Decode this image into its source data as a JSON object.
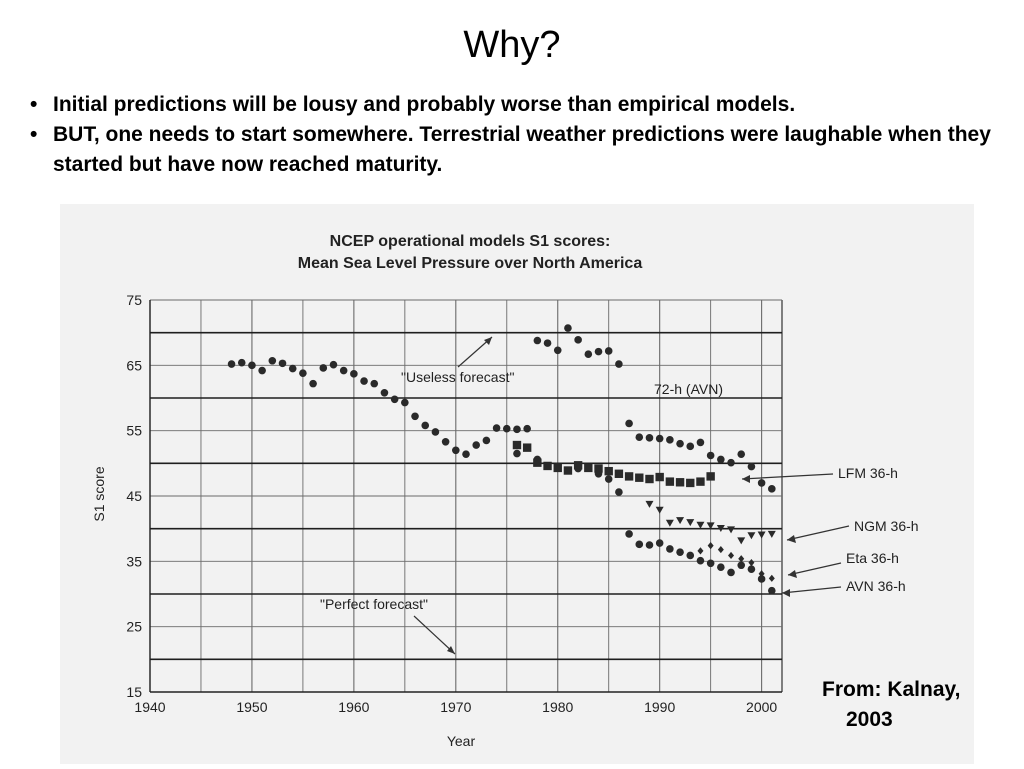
{
  "slide": {
    "title": "Why?",
    "bullets": [
      "Initial predictions will be lousy and probably worse than empirical models.",
      "BUT, one needs to start somewhere.  Terrestrial weather predictions were laughable when they started but have now reached maturity."
    ],
    "bullet_glyph": "•",
    "citation_line1": "From: Kalnay,",
    "citation_line2": "2003"
  },
  "chart_data": {
    "type": "scatter",
    "title": "NCEP operational models S1 scores:",
    "subtitle": "Mean Sea Level Pressure over North America",
    "xlabel": "Year",
    "ylabel": "S1 score",
    "xlim": [
      1940,
      2002
    ],
    "ylim": [
      15,
      75
    ],
    "x_ticks": [
      1940,
      1950,
      1960,
      1970,
      1980,
      1990,
      2000
    ],
    "y_ticks": [
      15,
      25,
      35,
      45,
      55,
      65,
      75
    ],
    "grid": true,
    "annotations": [
      "\"Useless forecast\"",
      "\"Perfect forecast\"",
      "72-h (AVN)",
      "LFM 36-h",
      "NGM 36-h",
      "Eta 36-h",
      "AVN 36-h"
    ],
    "reference_lines": [
      70,
      60,
      50,
      40,
      30,
      20
    ],
    "series": [
      {
        "marker": "circle",
        "x": [
          1948,
          1949,
          1950,
          1951,
          1952,
          1953,
          1954,
          1955,
          1956,
          1957,
          1958,
          1959,
          1960,
          1961,
          1962,
          1963,
          1964,
          1965,
          1966,
          1967,
          1968,
          1969,
          1970,
          1971,
          1972,
          1973,
          1974,
          1975,
          1976
        ],
        "y": [
          65.2,
          65.4,
          65.0,
          64.2,
          65.7,
          65.3,
          64.5,
          63.8,
          62.2,
          64.6,
          65.1,
          64.2,
          63.7,
          62.6,
          62.2,
          60.8,
          59.8,
          59.3,
          57.2,
          55.8,
          54.8,
          53.3,
          52.0,
          51.4,
          52.8,
          53.5,
          55.4,
          55.3,
          55.2
        ]
      },
      {
        "marker": "circle",
        "x": [
          1977,
          1978,
          1979,
          1980,
          1981,
          1982,
          1983,
          1984,
          1985,
          1986,
          1987,
          1988,
          1989,
          1990,
          1991,
          1992,
          1993,
          1994,
          1995,
          1996,
          1997,
          1998,
          1999,
          2000,
          2001
        ],
        "y": [
          55.3,
          68.8,
          68.4,
          67.3,
          70.7,
          68.9,
          66.7,
          67.1,
          67.2,
          65.2,
          56.1,
          54.0,
          53.9,
          53.8,
          53.6,
          53.0,
          52.6,
          53.2,
          51.2,
          50.6,
          50.1,
          51.4,
          49.5,
          47.0,
          46.1
        ]
      },
      {
        "marker": "square",
        "x": [
          1976,
          1977,
          1978,
          1979,
          1980,
          1981,
          1982,
          1983,
          1984,
          1985,
          1986,
          1987,
          1988,
          1989,
          1990,
          1991,
          1992,
          1993,
          1994,
          1995
        ],
        "y": [
          52.8,
          52.4,
          50.1,
          49.6,
          49.3,
          48.9,
          49.7,
          49.3,
          49.2,
          48.8,
          48.4,
          48.0,
          47.8,
          47.6,
          47.9,
          47.2,
          47.1,
          47.0,
          47.2,
          48.0
        ]
      },
      {
        "marker": "triangle",
        "x": [
          1989,
          1990,
          1991,
          1992,
          1993,
          1994,
          1995,
          1996,
          1997,
          1998,
          1999,
          2000,
          2001
        ],
        "y": [
          43.8,
          42.9,
          40.9,
          41.3,
          41.0,
          40.6,
          40.5,
          40.1,
          39.9,
          38.2,
          39.0,
          39.1,
          39.2
        ]
      },
      {
        "marker": "diamond",
        "x": [
          1994,
          1995,
          1996,
          1997,
          1998,
          1999,
          2000,
          2001
        ],
        "y": [
          36.6,
          37.4,
          36.8,
          35.9,
          35.4,
          34.8,
          33.1,
          32.4
        ]
      },
      {
        "marker": "circle",
        "x": [
          1976,
          1978,
          1980,
          1982,
          1984,
          1985,
          1986,
          1987,
          1988,
          1989,
          1990,
          1991,
          1992,
          1993,
          1994,
          1995,
          1996,
          1997,
          1998,
          1999,
          2000,
          2001
        ],
        "y": [
          51.5,
          50.6,
          49.5,
          49.2,
          48.4,
          47.6,
          45.6,
          39.2,
          37.6,
          37.5,
          37.8,
          36.9,
          36.4,
          35.9,
          35.1,
          34.7,
          34.1,
          33.3,
          34.4,
          33.8,
          32.3,
          30.5
        ]
      }
    ]
  }
}
